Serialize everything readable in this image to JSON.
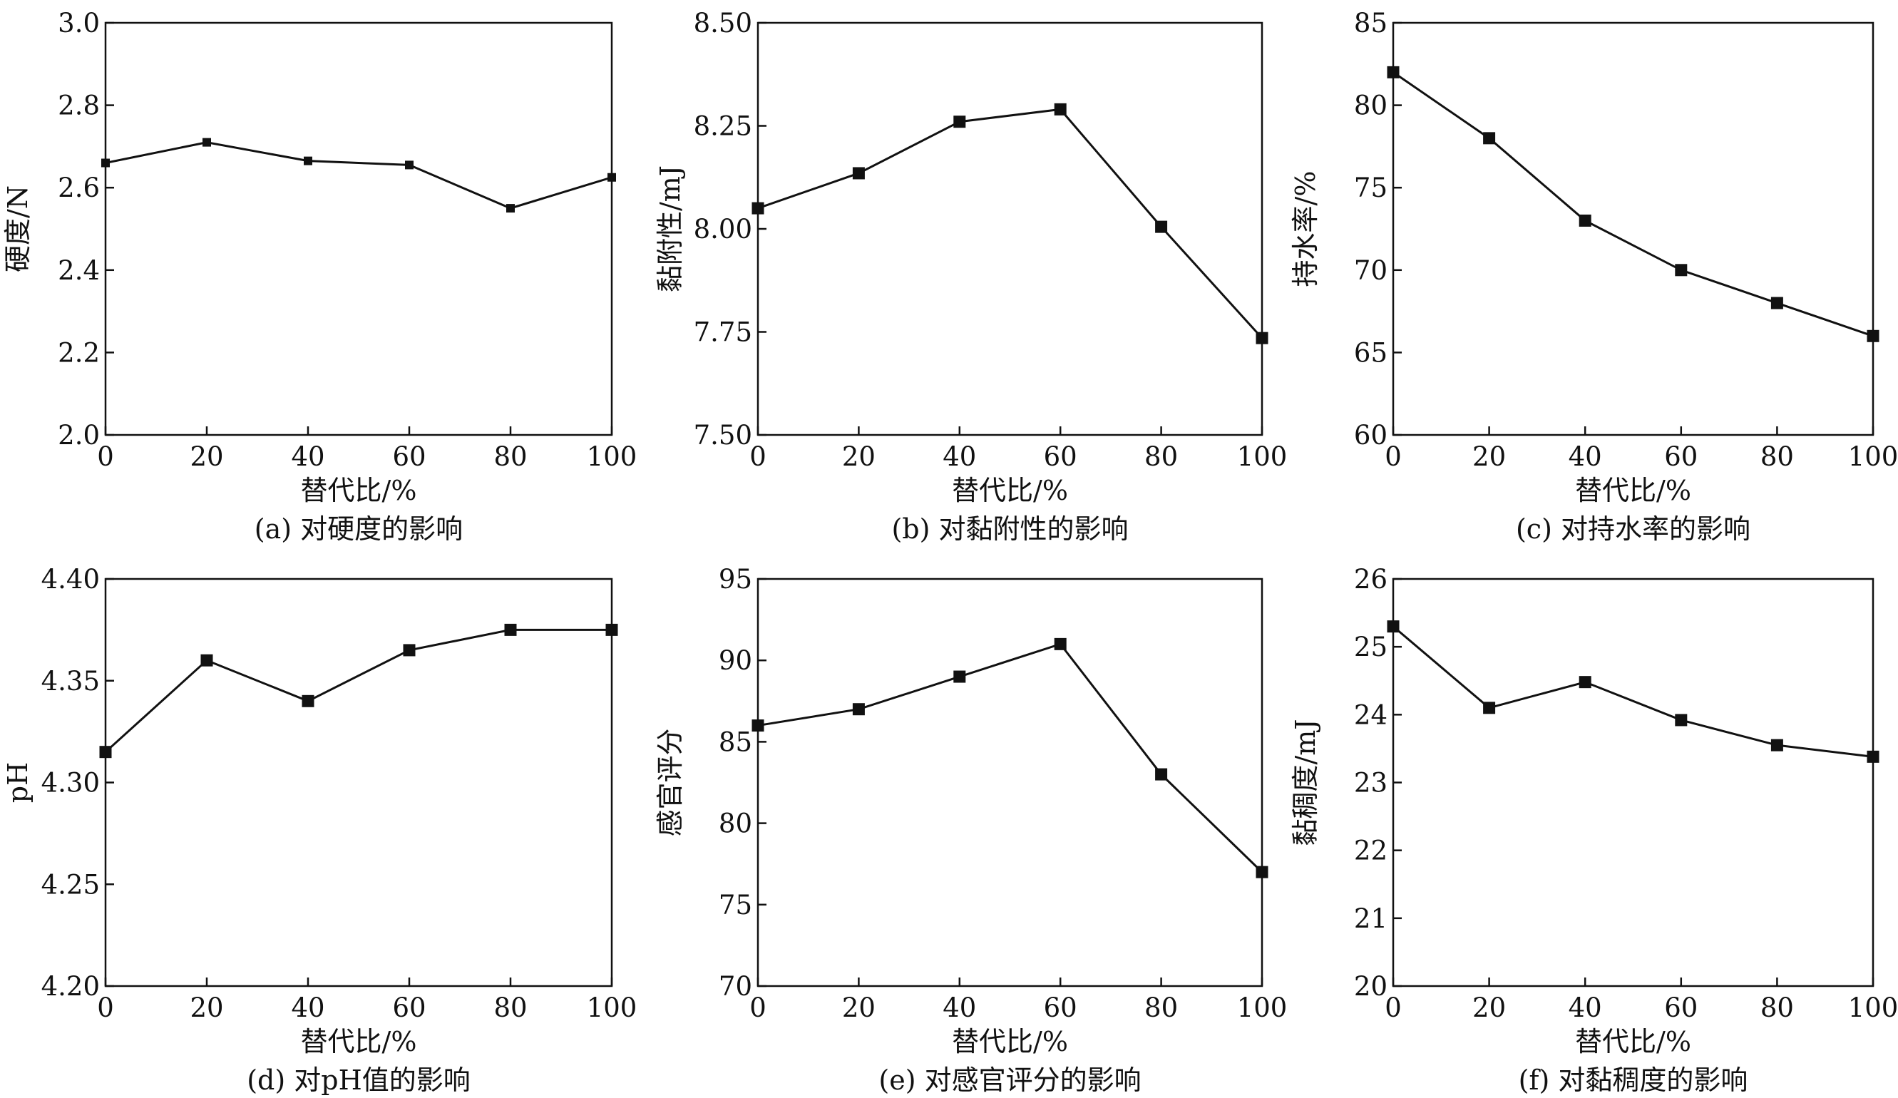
{
  "chart_data": [
    {
      "type": "line",
      "caption": "(a) 对硬度的影响",
      "xlabel": "替代比/%",
      "ylabel": "硬度/N",
      "x": [
        0,
        20,
        40,
        60,
        80,
        100
      ],
      "xticks": [
        "0",
        "20",
        "40",
        "60",
        "80",
        "100"
      ],
      "yticks": [
        "2.0",
        "2.2",
        "2.4",
        "2.6",
        "2.8",
        "3.0"
      ],
      "xlim": [
        0,
        100
      ],
      "ylim": [
        2.0,
        3.0
      ],
      "series": [
        {
          "values": [
            2.66,
            2.71,
            2.665,
            2.655,
            2.55,
            2.625
          ]
        }
      ],
      "marker": "square-small",
      "grid": false
    },
    {
      "type": "line",
      "caption": "(b) 对黏附性的影响",
      "xlabel": "替代比/%",
      "ylabel": "黏附性/mJ",
      "x": [
        0,
        20,
        40,
        60,
        80,
        100
      ],
      "xticks": [
        "0",
        "20",
        "40",
        "60",
        "80",
        "100"
      ],
      "yticks": [
        "7.50",
        "7.75",
        "8.00",
        "8.25",
        "8.50"
      ],
      "xlim": [
        0,
        100
      ],
      "ylim": [
        7.5,
        8.5
      ],
      "series": [
        {
          "values": [
            8.05,
            8.135,
            8.26,
            8.29,
            8.005,
            7.735
          ]
        }
      ],
      "marker": "square",
      "grid": false
    },
    {
      "type": "line",
      "caption": "(c) 对持水率的影响",
      "xlabel": "替代比/%",
      "ylabel": "持水率/%",
      "x": [
        0,
        20,
        40,
        60,
        80,
        100
      ],
      "xticks": [
        "0",
        "20",
        "40",
        "60",
        "80",
        "100"
      ],
      "yticks": [
        "60",
        "65",
        "70",
        "75",
        "80",
        "85"
      ],
      "xlim": [
        0,
        100
      ],
      "ylim": [
        60,
        85
      ],
      "series": [
        {
          "values": [
            82,
            78,
            73,
            70,
            68,
            66
          ]
        }
      ],
      "marker": "square",
      "grid": false
    },
    {
      "type": "line",
      "caption": "(d) 对pH值的影响",
      "xlabel": "替代比/%",
      "ylabel": "pH",
      "x": [
        0,
        20,
        40,
        60,
        80,
        100
      ],
      "xticks": [
        "0",
        "20",
        "40",
        "60",
        "80",
        "100"
      ],
      "yticks": [
        "4.20",
        "4.25",
        "4.30",
        "4.35",
        "4.40"
      ],
      "xlim": [
        0,
        100
      ],
      "ylim": [
        4.2,
        4.4
      ],
      "series": [
        {
          "values": [
            4.315,
            4.36,
            4.34,
            4.365,
            4.375,
            4.375
          ]
        }
      ],
      "marker": "square",
      "grid": false
    },
    {
      "type": "line",
      "caption": "(e) 对感官评分的影响",
      "xlabel": "替代比/%",
      "ylabel": "感官评分",
      "x": [
        0,
        20,
        40,
        60,
        80,
        100
      ],
      "xticks": [
        "0",
        "20",
        "40",
        "60",
        "80",
        "100"
      ],
      "yticks": [
        "70",
        "75",
        "80",
        "85",
        "90",
        "95"
      ],
      "xlim": [
        0,
        100
      ],
      "ylim": [
        70,
        95
      ],
      "series": [
        {
          "values": [
            86,
            87,
            89,
            91,
            83,
            77
          ]
        }
      ],
      "marker": "square",
      "grid": false
    },
    {
      "type": "line",
      "caption": "(f) 对黏稠度的影响",
      "xlabel": "替代比/%",
      "ylabel": "黏稠度/mJ",
      "x": [
        0,
        20,
        40,
        60,
        80,
        100
      ],
      "xticks": [
        "0",
        "20",
        "40",
        "60",
        "80",
        "100"
      ],
      "yticks": [
        "20",
        "21",
        "22",
        "23",
        "24",
        "25",
        "26"
      ],
      "xlim": [
        0,
        100
      ],
      "ylim": [
        20,
        26
      ],
      "series": [
        {
          "values": [
            25.3,
            24.1,
            24.48,
            23.92,
            23.55,
            23.38
          ]
        }
      ],
      "marker": "square",
      "grid": false
    }
  ]
}
